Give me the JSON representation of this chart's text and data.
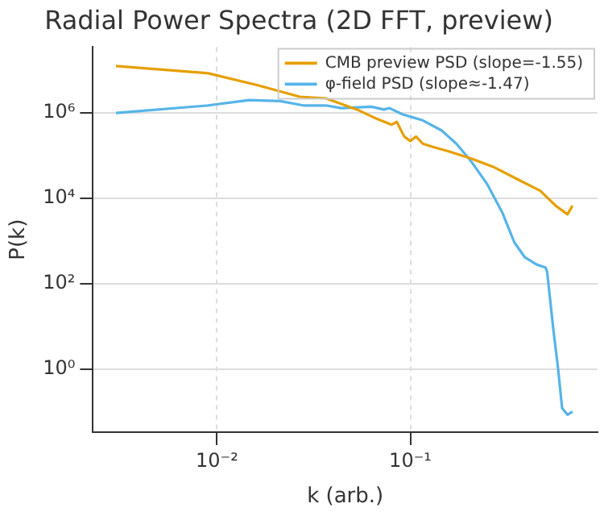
{
  "chart_data": {
    "type": "line",
    "title": "Radial Power Spectra (2D FFT, preview)",
    "xlabel": "k (arb.)",
    "ylabel": "P(k)",
    "log": "xy",
    "xlim": [
      0.00228,
      0.93
    ],
    "ylim": [
      0.033,
      35000000
    ],
    "xticks": [
      {
        "value": 0.01,
        "label": "10⁻²"
      },
      {
        "value": 0.1,
        "label": "10⁻¹"
      }
    ],
    "yticks": [
      {
        "value": 1,
        "label": "10⁰"
      },
      {
        "value": 100,
        "label": "10²"
      },
      {
        "value": 10000,
        "label": "10⁴"
      },
      {
        "value": 1000000,
        "label": "10⁶"
      }
    ],
    "grid": true,
    "legend": "top right",
    "marker": "none",
    "line_style": "solid",
    "series": [
      {
        "name": "CMB preview PSD (slope=-1.55)",
        "color": "#e69f00",
        "x": [
          0.003,
          0.009,
          0.0161,
          0.0268,
          0.0366,
          0.053,
          0.067,
          0.08,
          0.085,
          0.093,
          0.1,
          0.107,
          0.116,
          0.131,
          0.158,
          0.207,
          0.272,
          0.358,
          0.47,
          0.565,
          0.65,
          0.69
        ],
        "values": [
          12600000,
          8500000,
          4500000,
          2400000,
          2200000,
          1200000,
          730000,
          530000,
          620000,
          280000,
          220000,
          280000,
          190000,
          160000,
          126000,
          85000,
          53000,
          28000,
          15000,
          6700,
          4200,
          6700
        ]
      },
      {
        "name": "φ-field PSD (slope≈-1.47)",
        "color": "#56b4e9",
        "x": [
          0.003,
          0.009,
          0.0147,
          0.0212,
          0.028,
          0.0366,
          0.044,
          0.063,
          0.073,
          0.078,
          0.091,
          0.116,
          0.145,
          0.173,
          0.207,
          0.249,
          0.3,
          0.345,
          0.39,
          0.45,
          0.5,
          0.51,
          0.55,
          0.58,
          0.61,
          0.65,
          0.69
        ],
        "values": [
          1000000,
          1500000,
          2000000,
          1900000,
          1500000,
          1500000,
          1300000,
          1400000,
          1200000,
          1300000,
          930000,
          670000,
          390000,
          190000,
          72000,
          22000,
          4500,
          930,
          420,
          280,
          240,
          190,
          8,
          1.1,
          0.12,
          0.085,
          0.1
        ]
      }
    ]
  }
}
